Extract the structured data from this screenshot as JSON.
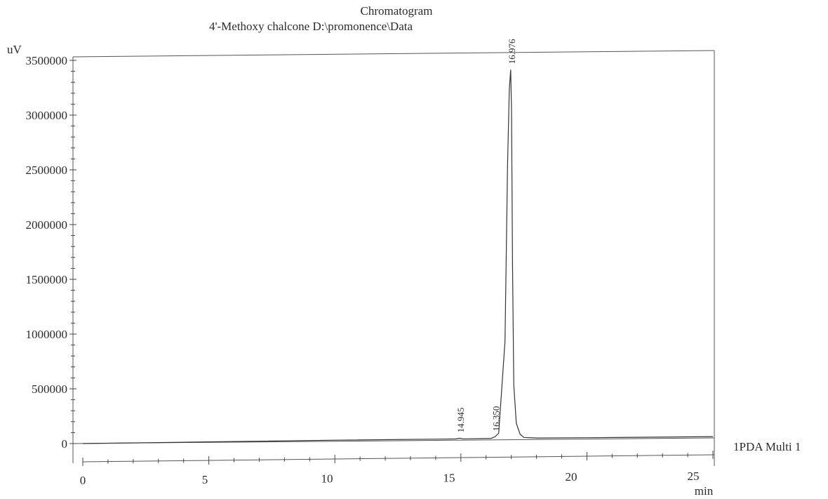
{
  "chart_data": {
    "type": "line",
    "title": "Chromatogram",
    "subtitle": "4'-Methoxy chalcone D:\\promonence\\Data",
    "xlabel": "min",
    "ylabel": "uV",
    "xlim": [
      0,
      25
    ],
    "ylim": [
      -200000,
      3550000
    ],
    "x_ticks": [
      0,
      5,
      10,
      15,
      20,
      25
    ],
    "x_tick_labels": [
      "0",
      "5",
      "10",
      "15",
      "20",
      "25"
    ],
    "y_ticks": [
      0,
      500000,
      1000000,
      1500000,
      2000000,
      2500000,
      3000000,
      3500000
    ],
    "y_tick_labels": [
      "0",
      "500000",
      "1000000",
      "1500000",
      "2000000",
      "2500000",
      "3000000",
      "3500000"
    ],
    "grid": false,
    "series": [
      {
        "name": "1PDA Multi 1",
        "x": [
          0,
          5,
          10,
          14.8,
          14.945,
          15.1,
          16.2,
          16.35,
          16.5,
          16.75,
          16.85,
          16.92,
          16.976,
          17.01,
          17.05,
          17.1,
          17.2,
          17.35,
          17.5,
          18,
          20,
          25
        ],
        "y": [
          0,
          5000,
          10000,
          12000,
          18000,
          12000,
          14000,
          28000,
          60000,
          900000,
          2500000,
          3200000,
          3380000,
          3000000,
          1600000,
          500000,
          150000,
          50000,
          20000,
          14000,
          12000,
          12000
        ]
      }
    ],
    "peaks": [
      {
        "time": 14.945,
        "label": "14.945"
      },
      {
        "time": 16.35,
        "label": "16.350"
      },
      {
        "time": 16.976,
        "label": "16.976"
      }
    ]
  }
}
